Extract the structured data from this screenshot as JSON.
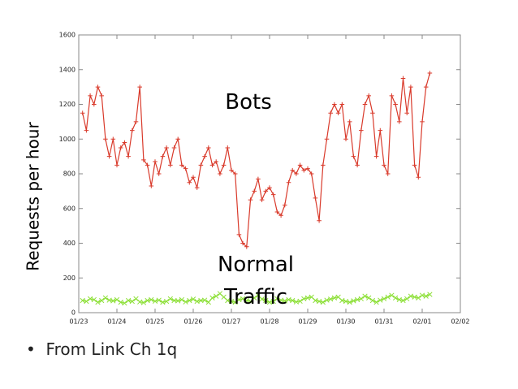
{
  "chart_data": {
    "type": "line",
    "y_label": "Requests per hour",
    "x": [
      0.1,
      0.2,
      0.3,
      0.4,
      0.5,
      0.6,
      0.7,
      0.8,
      0.9,
      1.0,
      1.1,
      1.2,
      1.3,
      1.4,
      1.5,
      1.6,
      1.7,
      1.8,
      1.9,
      2.0,
      2.1,
      2.2,
      2.3,
      2.4,
      2.5,
      2.6,
      2.7,
      2.8,
      2.9,
      3.0,
      3.1,
      3.2,
      3.3,
      3.4,
      3.5,
      3.6,
      3.7,
      3.8,
      3.9,
      4.0,
      4.1,
      4.2,
      4.3,
      4.4,
      4.5,
      4.6,
      4.7,
      4.8,
      4.9,
      5.0,
      5.1,
      5.2,
      5.3,
      5.4,
      5.5,
      5.6,
      5.7,
      5.8,
      5.9,
      6.0,
      6.1,
      6.2,
      6.3,
      6.4,
      6.5,
      6.6,
      6.7,
      6.8,
      6.9,
      7.0,
      7.1,
      7.2,
      7.3,
      7.4,
      7.5,
      7.6,
      7.7,
      7.8,
      7.9,
      8.0,
      8.1,
      8.2,
      8.3,
      8.4,
      8.5,
      8.6,
      8.7,
      8.8,
      8.9,
      9.0,
      9.1,
      9.2
    ],
    "series": [
      {
        "name": "Bots",
        "color": "#d93a2b",
        "marker": "plus",
        "values": [
          1150,
          1050,
          1250,
          1200,
          1300,
          1250,
          1000,
          900,
          1000,
          850,
          950,
          980,
          900,
          1050,
          1100,
          1300,
          880,
          850,
          730,
          870,
          800,
          900,
          950,
          850,
          950,
          1000,
          850,
          830,
          750,
          780,
          720,
          850,
          900,
          950,
          850,
          870,
          800,
          850,
          950,
          820,
          800,
          450,
          400,
          380,
          650,
          700,
          770,
          650,
          700,
          720,
          680,
          580,
          560,
          620,
          750,
          820,
          800,
          850,
          820,
          830,
          800,
          660,
          530,
          850,
          1000,
          1150,
          1200,
          1150,
          1200,
          1000,
          1100,
          900,
          850,
          1050,
          1200,
          1250,
          1150,
          900,
          1050,
          850,
          800,
          1250,
          1200,
          1100,
          1350,
          1150,
          1300,
          850,
          780,
          1100,
          1300,
          1380
        ]
      },
      {
        "name": "Normal Traffic",
        "color": "#8ee03a",
        "marker": "cross",
        "values": [
          70,
          65,
          80,
          75,
          60,
          70,
          85,
          72,
          68,
          75,
          60,
          55,
          70,
          65,
          80,
          62,
          58,
          70,
          75,
          66,
          72,
          60,
          65,
          80,
          70,
          68,
          75,
          62,
          70,
          78,
          65,
          70,
          72,
          60,
          85,
          95,
          110,
          90,
          70,
          65,
          60,
          75,
          80,
          70,
          65,
          85,
          100,
          78,
          70,
          60,
          65,
          80,
          72,
          68,
          75,
          70,
          62,
          66,
          80,
          85,
          90,
          70,
          65,
          60,
          72,
          78,
          85,
          90,
          70,
          65,
          60,
          68,
          75,
          80,
          95,
          85,
          70,
          60,
          72,
          80,
          90,
          100,
          85,
          75,
          70,
          80,
          95,
          90,
          85,
          100,
          95,
          105
        ]
      }
    ],
    "xlim": [
      0,
      10
    ],
    "xticks": [
      {
        "value": 0,
        "label": "01/23"
      },
      {
        "value": 1,
        "label": "01/24"
      },
      {
        "value": 2,
        "label": "01/25"
      },
      {
        "value": 3,
        "label": "01/26"
      },
      {
        "value": 4,
        "label": "01/27"
      },
      {
        "value": 5,
        "label": "01/28"
      },
      {
        "value": 6,
        "label": "01/29"
      },
      {
        "value": 7,
        "label": "01/30"
      },
      {
        "value": 8,
        "label": "01/31"
      },
      {
        "value": 9,
        "label": "02/01"
      },
      {
        "value": 10,
        "label": "02/02"
      }
    ],
    "ylim": [
      0,
      1600
    ],
    "yticks": [
      0,
      200,
      400,
      600,
      800,
      1000,
      1200,
      1400,
      1600
    ],
    "grid": false
  },
  "bullets": [
    "From Link Ch 1q"
  ]
}
